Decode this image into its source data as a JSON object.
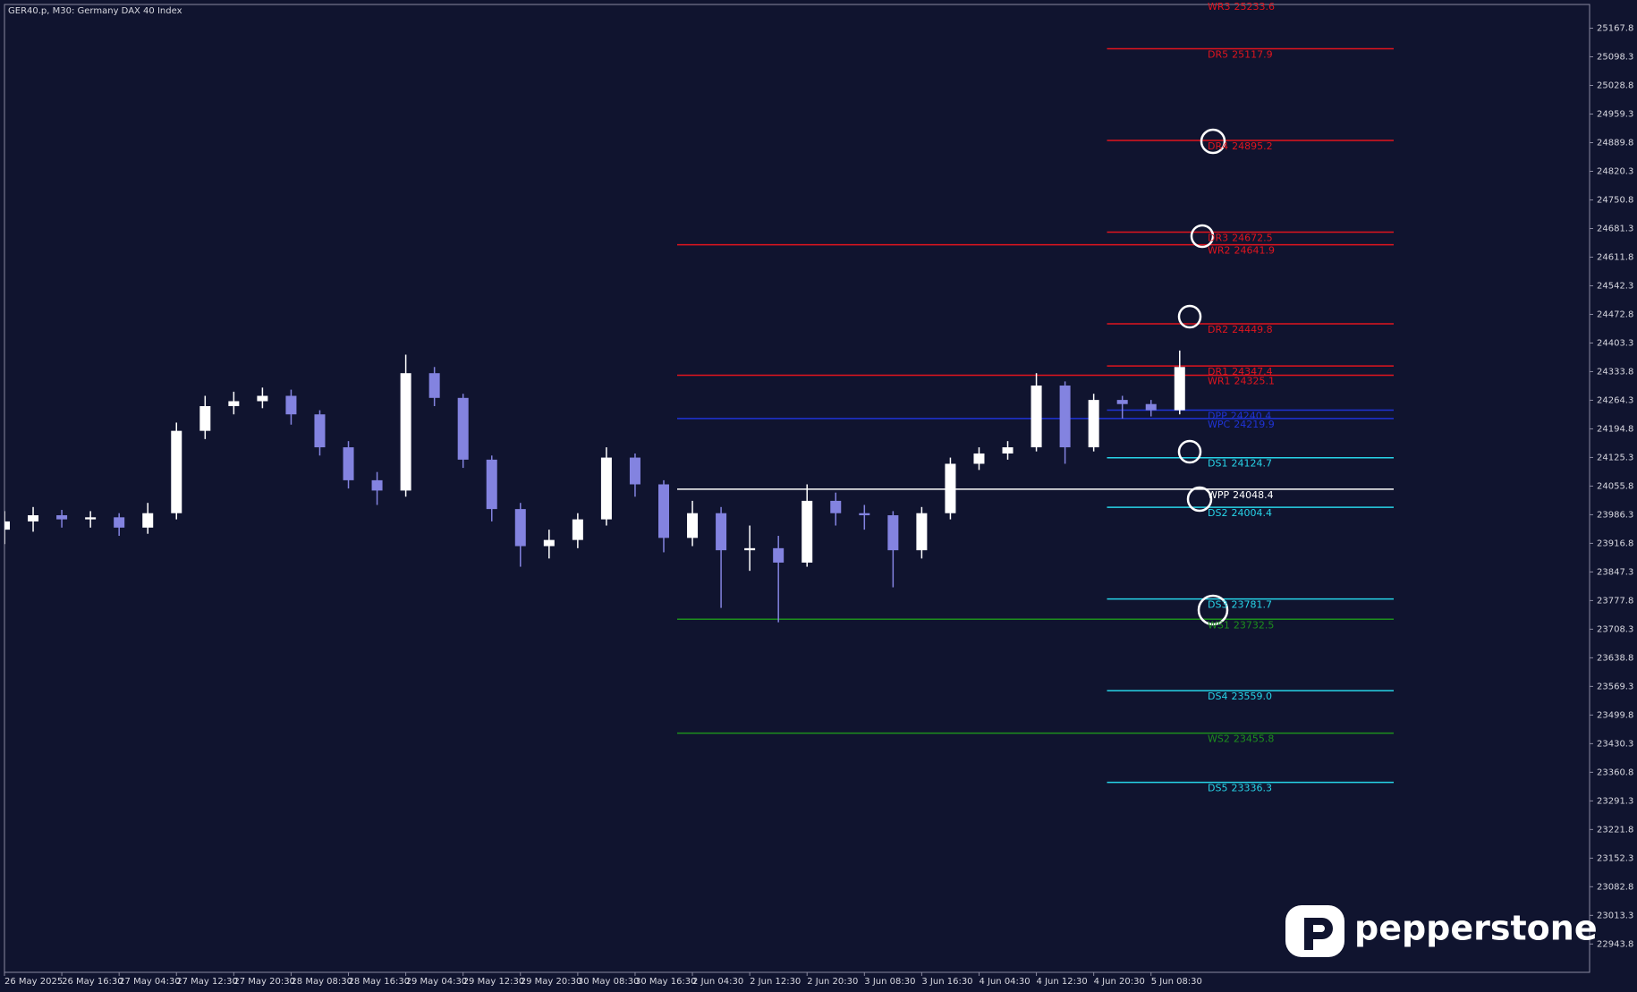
{
  "chart_data": {
    "type": "candlestick",
    "title": "GER40.p, M30:  Germany DAX 40 Index",
    "open": [
      23950,
      23970,
      23985,
      23975,
      23980,
      23955,
      23990,
      24190,
      24250,
      24262,
      24275,
      24230,
      24150,
      24070,
      24045,
      24330,
      24270,
      24120,
      24000,
      23910,
      23925,
      23975,
      24125,
      24060,
      23930,
      23990,
      23900,
      23905,
      23870,
      24020,
      23990,
      23985,
      23900,
      23990,
      24110,
      24135,
      24150,
      24300,
      24150,
      24265,
      24255,
      24240
    ],
    "high": [
      23995,
      24005,
      23998,
      23995,
      23990,
      24015,
      24210,
      24275,
      24285,
      24295,
      24290,
      24240,
      24165,
      24090,
      24375,
      24345,
      24280,
      24130,
      24015,
      23950,
      23990,
      24150,
      24135,
      24070,
      24020,
      24005,
      23960,
      23935,
      24060,
      24040,
      24010,
      23995,
      24005,
      24125,
      24150,
      24165,
      24330,
      24310,
      24280,
      24275,
      24265,
      24385
    ],
    "low": [
      23915,
      23945,
      23955,
      23955,
      23935,
      23940,
      23975,
      24170,
      24230,
      24245,
      24205,
      24130,
      24050,
      24010,
      24030,
      24250,
      24100,
      23970,
      23860,
      23880,
      23905,
      23960,
      24030,
      23895,
      23910,
      23760,
      23850,
      23725,
      23860,
      23960,
      23950,
      23810,
      23880,
      23975,
      24095,
      24120,
      24140,
      24110,
      24140,
      24220,
      24225,
      24230
    ],
    "close": [
      23970,
      23985,
      23975,
      23980,
      23955,
      23990,
      24190,
      24250,
      24262,
      24275,
      24230,
      24150,
      24070,
      24045,
      24330,
      24270,
      24120,
      24000,
      23910,
      23925,
      23975,
      24125,
      24060,
      23930,
      23990,
      23900,
      23905,
      23870,
      24020,
      23990,
      23985,
      23900,
      23990,
      24110,
      24135,
      24150,
      24300,
      24150,
      24265,
      24255,
      24240,
      24345
    ],
    "up_color": "#ffffff",
    "down_color": "#8383e0",
    "xlim": [
      0,
      55.3
    ],
    "xticks": [
      {
        "value": 0,
        "label": "26 May 2025"
      },
      {
        "value": 2,
        "label": "26 May 16:30"
      },
      {
        "value": 4,
        "label": "27 May 04:30"
      },
      {
        "value": 6,
        "label": "27 May 12:30"
      },
      {
        "value": 8,
        "label": "27 May 20:30"
      },
      {
        "value": 10,
        "label": "28 May 08:30"
      },
      {
        "value": 12,
        "label": "28 May 16:30"
      },
      {
        "value": 14,
        "label": "29 May 04:30"
      },
      {
        "value": 16,
        "label": "29 May 12:30"
      },
      {
        "value": 18,
        "label": "29 May 20:30"
      },
      {
        "value": 20,
        "label": "30 May 08:30"
      },
      {
        "value": 22,
        "label": "30 May 16:30"
      },
      {
        "value": 24,
        "label": "2 Jun 04:30"
      },
      {
        "value": 26,
        "label": "2 Jun 12:30"
      },
      {
        "value": 28,
        "label": "2 Jun 20:30"
      },
      {
        "value": 30,
        "label": "3 Jun 08:30"
      },
      {
        "value": 32,
        "label": "3 Jun 16:30"
      },
      {
        "value": 34,
        "label": "4 Jun 04:30"
      },
      {
        "value": 36,
        "label": "4 Jun 12:30"
      },
      {
        "value": 38,
        "label": "4 Jun 20:30"
      },
      {
        "value": 40,
        "label": "5 Jun 08:30"
      }
    ],
    "ylim": [
      22875,
      25225.4
    ],
    "yticks": [
      25167.8,
      25098.3,
      25028.8,
      24959.3,
      24889.8,
      24820.3,
      24750.8,
      24681.3,
      24611.8,
      24542.3,
      24472.8,
      24403.3,
      24333.8,
      24264.3,
      24194.8,
      24125.3,
      24055.8,
      23986.3,
      23916.8,
      23847.3,
      23777.8,
      23708.3,
      23638.8,
      23569.3,
      23499.8,
      23430.3,
      23360.8,
      23291.3,
      23221.8,
      23152.3,
      23082.8,
      23013.3,
      22943.8
    ],
    "levels": [
      {
        "name": "WR3",
        "value": 25233.6,
        "color": "#e0141e"
      },
      {
        "name": "DR5",
        "value": 25117.9,
        "color": "#e0141e"
      },
      {
        "name": "DR4",
        "value": 24895.2,
        "color": "#e0141e"
      },
      {
        "name": "DR3",
        "value": 24672.5,
        "color": "#e0141e"
      },
      {
        "name": "WR2",
        "value": 24641.9,
        "color": "#e0141e"
      },
      {
        "name": "DR2",
        "value": 24449.8,
        "color": "#e0141e"
      },
      {
        "name": "DR1",
        "value": 24347.4,
        "color": "#e0141e"
      },
      {
        "name": "WR1",
        "value": 24325.1,
        "color": "#e0141e"
      },
      {
        "name": "DPP",
        "value": 24240.4,
        "color": "#1f33d6"
      },
      {
        "name": "WPC",
        "value": 24219.9,
        "color": "#1f33d6"
      },
      {
        "name": "DS1",
        "value": 24124.7,
        "color": "#27d4e8"
      },
      {
        "name": "WPP",
        "value": 24048.4,
        "color": "#ffffff"
      },
      {
        "name": "DS2",
        "value": 24004.4,
        "color": "#27d4e8"
      },
      {
        "name": "DS3",
        "value": 23781.7,
        "color": "#27d4e8"
      },
      {
        "name": "WS1",
        "value": 23732.5,
        "color": "#1d8f1d"
      },
      {
        "name": "DS4",
        "value": 23559,
        "value_label": "23559.0",
        "color": "#27d4e8"
      },
      {
        "name": "WS2",
        "value": 23455.8,
        "color": "#1d8f1d"
      },
      {
        "name": "DS5",
        "value": 23336.3,
        "color": "#27d4e8"
      }
    ]
  },
  "logo": "pepperstone"
}
